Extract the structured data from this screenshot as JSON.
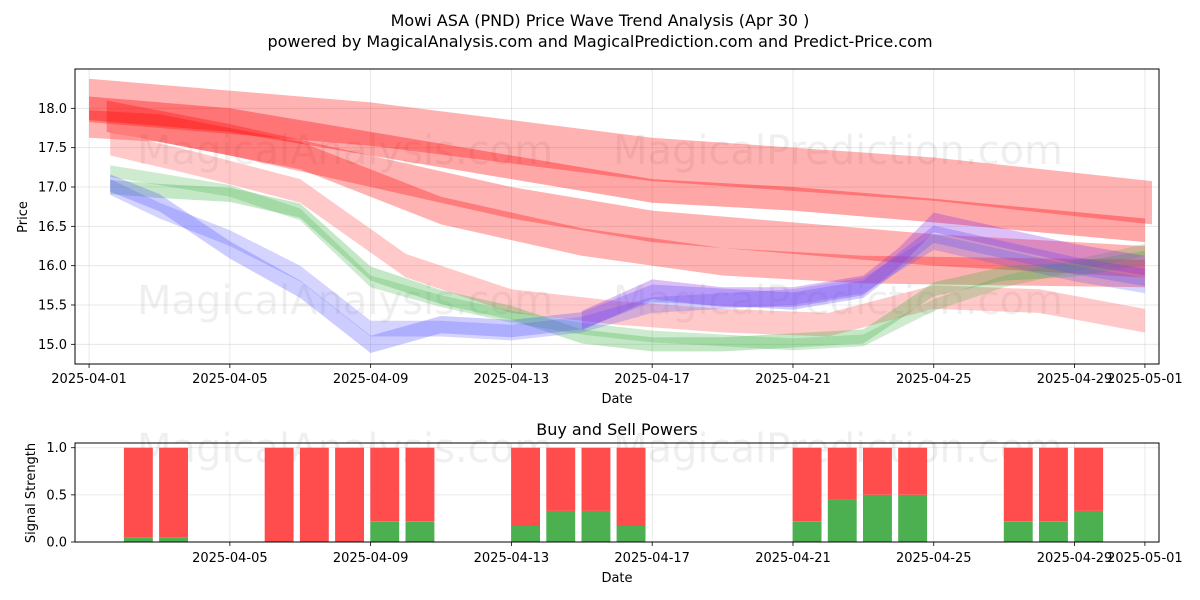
{
  "chart_data": [
    {
      "type": "line",
      "title": "Mowi ASA (PND) Price Wave Trend Analysis (Apr 30 )",
      "subtitle": "powered by MagicalAnalysis.com and MagicalPrediction.com and Predict-Price.com",
      "xlabel": "Date",
      "ylabel": "Price",
      "ylim": [
        14.75,
        18.5
      ],
      "xlim_days": [
        -0.4,
        30.4
      ],
      "x_ticks": [
        "2025-04-01",
        "2025-04-05",
        "2025-04-09",
        "2025-04-13",
        "2025-04-17",
        "2025-04-21",
        "2025-04-25",
        "2025-04-29",
        "2025-05-01"
      ],
      "x_tick_days": [
        0,
        4,
        8,
        12,
        16,
        20,
        24,
        28,
        30
      ],
      "y_ticks": [
        "15.0",
        "15.5",
        "16.0",
        "16.5",
        "17.0",
        "17.5",
        "18.0"
      ],
      "y_tick_values": [
        15.0,
        15.5,
        16.0,
        16.5,
        17.0,
        17.5,
        18.0
      ],
      "grid": true,
      "watermarks": [
        "MagicalAnalysis.com",
        "MagicalPrediction.com"
      ],
      "series": [
        {
          "name": "red-band-1",
          "color": "#ff0000",
          "width": 0.55,
          "opacity": 0.3,
          "x": [
            0,
            8,
            16,
            24,
            30.2
          ],
          "y": [
            18.1,
            17.8,
            17.35,
            17.1,
            16.8
          ]
        },
        {
          "name": "red-band-2",
          "color": "#ff0000",
          "width": 0.3,
          "opacity": 0.35,
          "x": [
            0,
            4,
            8,
            12,
            16,
            20,
            24,
            30
          ],
          "y": [
            18.0,
            17.85,
            17.55,
            17.25,
            16.95,
            16.85,
            16.7,
            16.45
          ]
        },
        {
          "name": "red-band-3",
          "color": "#ff0000",
          "width": 0.35,
          "opacity": 0.3,
          "x": [
            0,
            2,
            6,
            10,
            14,
            18,
            22,
            30
          ],
          "y": [
            17.8,
            17.75,
            17.4,
            16.7,
            16.3,
            16.05,
            15.95,
            15.9
          ]
        },
        {
          "name": "red-band-4",
          "color": "#ff0000",
          "width": 0.4,
          "opacity": 0.3,
          "x": [
            0.5,
            4,
            8,
            12,
            16,
            20,
            24,
            30
          ],
          "y": [
            17.9,
            17.6,
            17.2,
            16.8,
            16.5,
            16.35,
            16.2,
            16.05
          ]
        },
        {
          "name": "salmon-band",
          "color": "#ff4d4d",
          "width": 0.3,
          "opacity": 0.3,
          "x": [
            0.6,
            3,
            6,
            9,
            12,
            15,
            18,
            21,
            24,
            27,
            30
          ],
          "y": [
            17.55,
            17.3,
            16.95,
            16.0,
            15.55,
            15.4,
            15.3,
            15.25,
            15.6,
            15.55,
            15.3
          ]
        },
        {
          "name": "green-band-1",
          "color": "#3cb043",
          "width": 0.18,
          "opacity": 0.3,
          "x": [
            0.6,
            2,
            4,
            6,
            8,
            10,
            12,
            14,
            16,
            18,
            20,
            22,
            24,
            26,
            28,
            30
          ],
          "y": [
            17.0,
            16.95,
            16.9,
            16.7,
            15.9,
            15.6,
            15.4,
            15.1,
            15.0,
            15.0,
            15.05,
            15.1,
            15.7,
            15.9,
            15.95,
            16.1
          ]
        },
        {
          "name": "green-band-2",
          "color": "#3cb043",
          "width": 0.15,
          "opacity": 0.25,
          "x": [
            0.6,
            2,
            4,
            6,
            8,
            10,
            12,
            14,
            16,
            18,
            20,
            22,
            24,
            26,
            28,
            30
          ],
          "y": [
            17.2,
            17.1,
            16.95,
            16.65,
            15.8,
            15.55,
            15.35,
            15.2,
            15.1,
            15.05,
            15.0,
            15.05,
            15.5,
            15.8,
            16.0,
            16.2
          ]
        },
        {
          "name": "blue-band-1",
          "color": "#5555ff",
          "width": 0.22,
          "opacity": 0.3,
          "x": [
            0.6,
            2,
            4,
            6,
            8,
            10,
            12,
            14,
            16,
            18,
            20,
            22,
            24,
            26,
            28,
            30
          ],
          "y": [
            17.05,
            16.8,
            16.2,
            15.7,
            15.0,
            15.25,
            15.2,
            15.3,
            15.65,
            15.6,
            15.55,
            15.7,
            16.4,
            16.2,
            16.0,
            15.85
          ]
        },
        {
          "name": "blue-band-2",
          "color": "#5555ff",
          "width": 0.2,
          "opacity": 0.25,
          "x": [
            0.6,
            2,
            4,
            6,
            8,
            10,
            12,
            14,
            16,
            18,
            20,
            22,
            24,
            26,
            28,
            30
          ],
          "y": [
            17.0,
            16.7,
            16.35,
            15.9,
            15.2,
            15.2,
            15.15,
            15.25,
            15.5,
            15.55,
            15.6,
            15.75,
            16.3,
            16.1,
            15.9,
            15.75
          ]
        },
        {
          "name": "purple-band",
          "color": "#8a2be2",
          "width": 0.25,
          "opacity": 0.3,
          "x": [
            14,
            15,
            16,
            18,
            20,
            22,
            23,
            24,
            26,
            28,
            30
          ],
          "y": [
            15.3,
            15.5,
            15.7,
            15.6,
            15.6,
            15.75,
            16.1,
            16.55,
            16.35,
            16.15,
            16.0
          ]
        }
      ]
    },
    {
      "type": "bar",
      "title": "Buy and Sell Powers",
      "xlabel": "Date",
      "ylabel": "Signal Strength",
      "ylim": [
        0,
        1.05
      ],
      "xlim_days": [
        -0.4,
        30.4
      ],
      "x_ticks": [
        "2025-04-05",
        "2025-04-09",
        "2025-04-13",
        "2025-04-17",
        "2025-04-21",
        "2025-04-25",
        "2025-04-29",
        "2025-05-01"
      ],
      "x_tick_days": [
        4,
        8,
        12,
        16,
        20,
        24,
        28,
        30
      ],
      "y_ticks": [
        "0.0",
        "0.5",
        "1.0"
      ],
      "y_tick_values": [
        0,
        0.5,
        1.0
      ],
      "series": [
        {
          "name": "Buy",
          "color": "#4caf50",
          "days": [
            1.4,
            2.4,
            5.4,
            6.4,
            7.4,
            8.4,
            9.4,
            12.4,
            13.4,
            14.4,
            15.4,
            20.4,
            21.4,
            22.4,
            23.4,
            26.4,
            27.4,
            28.4
          ],
          "values": [
            0.05,
            0.05,
            0.0,
            0.0,
            0.0,
            0.22,
            0.22,
            0.17,
            0.33,
            0.33,
            0.17,
            0.22,
            0.45,
            0.5,
            0.5,
            0.22,
            0.22,
            0.33
          ]
        },
        {
          "name": "Sell",
          "color": "#ff4d4d",
          "days": [
            1.4,
            2.4,
            5.4,
            6.4,
            7.4,
            8.4,
            9.4,
            12.4,
            13.4,
            14.4,
            15.4,
            20.4,
            21.4,
            22.4,
            23.4,
            26.4,
            27.4,
            28.4
          ],
          "values": [
            0.95,
            0.95,
            1.0,
            1.0,
            1.0,
            0.78,
            0.78,
            0.83,
            0.67,
            0.67,
            0.83,
            0.78,
            0.55,
            0.5,
            0.5,
            0.78,
            0.78,
            0.67
          ]
        }
      ]
    }
  ]
}
